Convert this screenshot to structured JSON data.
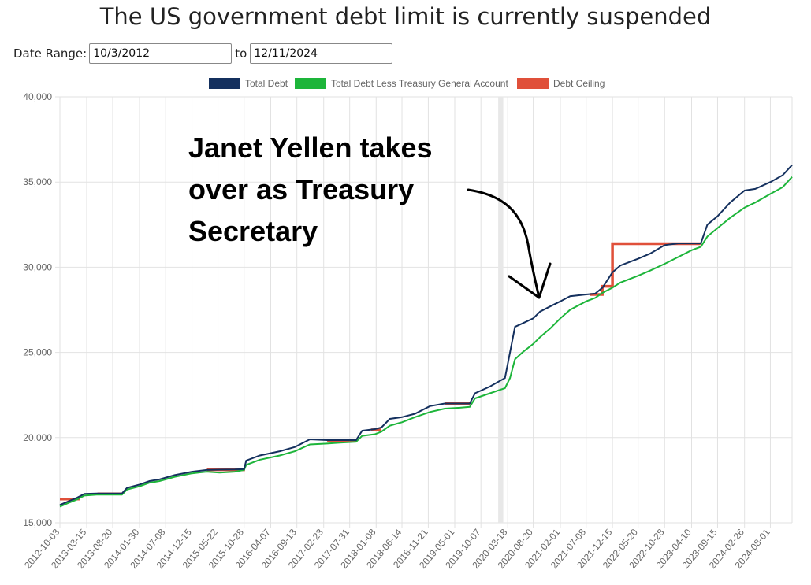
{
  "title": "The US government debt limit is currently suspended",
  "date_range": {
    "label": "Date Range:",
    "separator": "to",
    "start": "10/3/2012",
    "end": "12/11/2024"
  },
  "colors": {
    "total_debt": "#14305e",
    "less_tga": "#1db53a",
    "ceiling": "#e0503a",
    "grid": "#e2e2e2",
    "shade": "#e8e8e8"
  },
  "chart_data": {
    "type": "line",
    "ylim": [
      15000,
      40000
    ],
    "yticks": [
      "15,000",
      "20,000",
      "25,000",
      "30,000",
      "35,000",
      "40,000"
    ],
    "ytick_values": [
      15000,
      20000,
      25000,
      30000,
      35000,
      40000
    ],
    "xlim": [
      "2012-10-03",
      "2024-12-11"
    ],
    "xticks": [
      "2012-10-03",
      "2013-03-15",
      "2013-08-20",
      "2014-01-30",
      "2014-07-08",
      "2014-12-15",
      "2015-05-22",
      "2015-10-28",
      "2016-04-07",
      "2016-09-13",
      "2017-02-23",
      "2017-07-31",
      "2018-01-08",
      "2018-06-14",
      "2018-11-21",
      "2019-05-01",
      "2019-10-07",
      "2020-03-18",
      "2020-08-20",
      "2021-02-01",
      "2021-07-08",
      "2021-12-15",
      "2022-05-20",
      "2022-10-28",
      "2023-04-10",
      "2023-09-15",
      "2024-02-26",
      "2024-08-01"
    ],
    "legend": [
      "Total Debt",
      "Total Debt Less Treasury General Account",
      "Debt Ceiling"
    ],
    "legend_position": "top",
    "grid": true,
    "shaded_range": [
      "2020-01-20",
      "2020-02-20"
    ],
    "annotation": {
      "text_lines": [
        "Janet Yellen takes",
        "over as Treasury",
        "Secretary"
      ]
    },
    "series": [
      {
        "name": "Total Debt",
        "x": [
          "2012-10-03",
          "2012-11-20",
          "2013-01-10",
          "2013-03-01",
          "2013-05-15",
          "2013-08-01",
          "2013-10-15",
          "2013-11-15",
          "2014-02-01",
          "2014-04-01",
          "2014-06-01",
          "2014-09-01",
          "2014-12-15",
          "2015-03-15",
          "2015-06-01",
          "2015-09-01",
          "2015-10-28",
          "2015-11-10",
          "2016-02-01",
          "2016-06-01",
          "2016-09-01",
          "2016-12-01",
          "2017-03-15",
          "2017-06-01",
          "2017-09-08",
          "2017-10-15",
          "2018-01-01",
          "2018-02-09",
          "2018-04-01",
          "2018-06-14",
          "2018-09-01",
          "2018-12-01",
          "2019-03-01",
          "2019-06-01",
          "2019-07-31",
          "2019-09-01",
          "2019-12-01",
          "2020-03-01",
          "2020-04-01",
          "2020-05-01",
          "2020-06-15",
          "2020-08-20",
          "2020-10-01",
          "2020-12-01",
          "2021-02-01",
          "2021-04-01",
          "2021-07-08",
          "2021-09-01",
          "2021-10-15",
          "2021-12-15",
          "2022-02-01",
          "2022-05-20",
          "2022-08-01",
          "2022-10-28",
          "2023-01-19",
          "2023-04-10",
          "2023-06-05",
          "2023-07-15",
          "2023-09-15",
          "2023-12-01",
          "2024-02-26",
          "2024-05-01",
          "2024-08-01",
          "2024-10-15",
          "2024-12-11"
        ],
        "values": [
          16050,
          16250,
          16450,
          16700,
          16720,
          16720,
          16720,
          17050,
          17250,
          17450,
          17550,
          17800,
          18000,
          18100,
          18120,
          18130,
          18150,
          18650,
          18950,
          19200,
          19450,
          19900,
          19850,
          19850,
          19850,
          20400,
          20500,
          20600,
          21100,
          21200,
          21400,
          21850,
          22000,
          22000,
          22000,
          22600,
          23000,
          23500,
          25000,
          26500,
          26700,
          27000,
          27400,
          27700,
          28000,
          28300,
          28400,
          28450,
          28800,
          29700,
          30100,
          30500,
          30800,
          31300,
          31400,
          31400,
          31400,
          32500,
          33000,
          33800,
          34500,
          34600,
          35000,
          35400,
          36000
        ]
      },
      {
        "name": "Total Debt Less Treasury General Account",
        "x": [
          "2012-10-03",
          "2012-11-20",
          "2013-01-10",
          "2013-03-01",
          "2013-05-15",
          "2013-08-01",
          "2013-10-15",
          "2013-11-15",
          "2014-02-01",
          "2014-04-01",
          "2014-06-01",
          "2014-09-01",
          "2014-12-15",
          "2015-03-15",
          "2015-06-01",
          "2015-09-01",
          "2015-10-28",
          "2015-11-10",
          "2016-02-01",
          "2016-06-01",
          "2016-09-01",
          "2016-12-01",
          "2017-03-15",
          "2017-06-01",
          "2017-09-08",
          "2017-10-15",
          "2018-01-01",
          "2018-02-09",
          "2018-04-01",
          "2018-06-14",
          "2018-09-01",
          "2018-12-01",
          "2019-03-01",
          "2019-06-01",
          "2019-07-31",
          "2019-09-01",
          "2019-12-01",
          "2020-03-01",
          "2020-04-01",
          "2020-05-01",
          "2020-06-15",
          "2020-08-20",
          "2020-10-01",
          "2020-12-01",
          "2021-02-01",
          "2021-04-01",
          "2021-07-08",
          "2021-09-01",
          "2021-10-15",
          "2021-12-15",
          "2022-02-01",
          "2022-05-20",
          "2022-08-01",
          "2022-10-28",
          "2023-01-19",
          "2023-04-10",
          "2023-06-05",
          "2023-07-15",
          "2023-09-15",
          "2023-12-01",
          "2024-02-26",
          "2024-05-01",
          "2024-08-01",
          "2024-10-15",
          "2024-12-11"
        ],
        "values": [
          15950,
          16150,
          16350,
          16600,
          16650,
          16650,
          16650,
          16950,
          17150,
          17350,
          17450,
          17700,
          17900,
          18000,
          17950,
          18000,
          18100,
          18400,
          18700,
          18950,
          19200,
          19600,
          19650,
          19700,
          19750,
          20100,
          20200,
          20350,
          20700,
          20900,
          21200,
          21500,
          21700,
          21750,
          21800,
          22300,
          22600,
          22900,
          23500,
          24600,
          25000,
          25500,
          25900,
          26400,
          27000,
          27500,
          28000,
          28200,
          28500,
          28800,
          29100,
          29500,
          29800,
          30200,
          30600,
          31000,
          31200,
          31800,
          32300,
          32900,
          33500,
          33800,
          34300,
          34700,
          35300
        ]
      },
      {
        "name": "Debt Ceiling",
        "segments": [
          {
            "x": [
              "2012-10-03",
              "2013-02-01"
            ],
            "values": [
              16394,
              16394
            ]
          },
          {
            "x": [
              "2013-05-19",
              "2013-10-17"
            ],
            "values": [
              16699,
              16699
            ]
          },
          {
            "x": [
              "2015-03-16",
              "2015-11-02"
            ],
            "values": [
              18113,
              18113
            ]
          },
          {
            "x": [
              "2017-03-16",
              "2017-09-08"
            ],
            "values": [
              19809,
              19809
            ]
          },
          {
            "x": [
              "2017-12-08",
              "2018-02-09"
            ],
            "values": [
              20456,
              20456
            ]
          },
          {
            "x": [
              "2019-03-02",
              "2019-08-02"
            ],
            "values": [
              21988,
              21988
            ]
          },
          {
            "x": [
              "2021-08-01",
              "2021-10-14",
              "2021-10-14",
              "2021-12-15",
              "2021-12-15",
              "2023-01-19",
              "2023-06-03"
            ],
            "values": [
              28401,
              28401,
              28881,
              28881,
              31381,
              31381,
              31381
            ]
          }
        ]
      }
    ]
  }
}
